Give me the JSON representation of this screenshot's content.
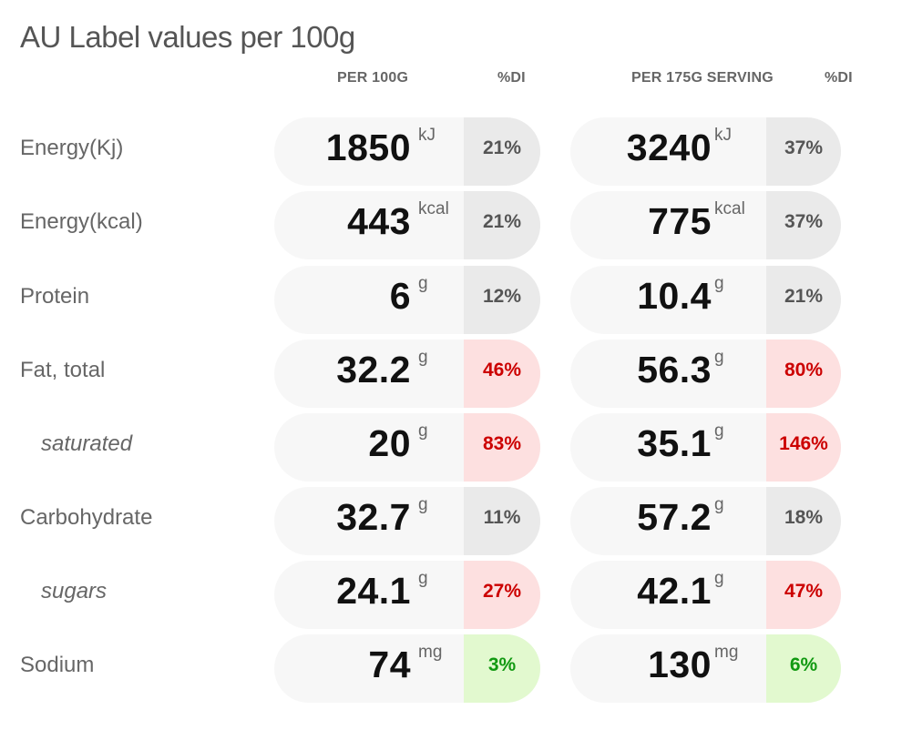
{
  "title": "AU Label values per 100g",
  "headers": {
    "per100": "PER 100G",
    "di1": "%DI",
    "serving": "PER 175G SERVING",
    "di2": "%DI"
  },
  "rows": [
    {
      "name": "Energy(Kj)",
      "sub": false,
      "v1": "1850",
      "u1": "kJ",
      "p1": "21%",
      "l1": "neutral",
      "v2": "3240",
      "u2": "kJ",
      "p2": "37%",
      "l2": "neutral"
    },
    {
      "name": "Energy(kcal)",
      "sub": false,
      "v1": "443",
      "u1": "kcal",
      "p1": "21%",
      "l1": "neutral",
      "v2": "775",
      "u2": "kcal",
      "p2": "37%",
      "l2": "neutral"
    },
    {
      "name": "Protein",
      "sub": false,
      "v1": "6",
      "u1": "g",
      "p1": "12%",
      "l1": "neutral",
      "v2": "10.4",
      "u2": "g",
      "p2": "21%",
      "l2": "neutral"
    },
    {
      "name": "Fat, total",
      "sub": false,
      "v1": "32.2",
      "u1": "g",
      "p1": "46%",
      "l1": "high",
      "v2": "56.3",
      "u2": "g",
      "p2": "80%",
      "l2": "high"
    },
    {
      "name": "saturated",
      "sub": true,
      "v1": "20",
      "u1": "g",
      "p1": "83%",
      "l1": "high",
      "v2": "35.1",
      "u2": "g",
      "p2": "146%",
      "l2": "high"
    },
    {
      "name": "Carbohydrate",
      "sub": false,
      "v1": "32.7",
      "u1": "g",
      "p1": "11%",
      "l1": "neutral",
      "v2": "57.2",
      "u2": "g",
      "p2": "18%",
      "l2": "neutral"
    },
    {
      "name": "sugars",
      "sub": true,
      "v1": "24.1",
      "u1": "g",
      "p1": "27%",
      "l1": "high",
      "v2": "42.1",
      "u2": "g",
      "p2": "47%",
      "l2": "high"
    },
    {
      "name": "Sodium",
      "sub": false,
      "v1": "74",
      "u1": "mg",
      "p1": "3%",
      "l1": "low",
      "v2": "130",
      "u2": "mg",
      "p2": "6%",
      "l2": "low"
    }
  ],
  "colors": {
    "neutral": "#eaeaea",
    "high": "#fde0e0",
    "high_text": "#cc0000",
    "low": "#e2f9cf",
    "low_text": "#119911",
    "pill": "#f7f7f7"
  }
}
